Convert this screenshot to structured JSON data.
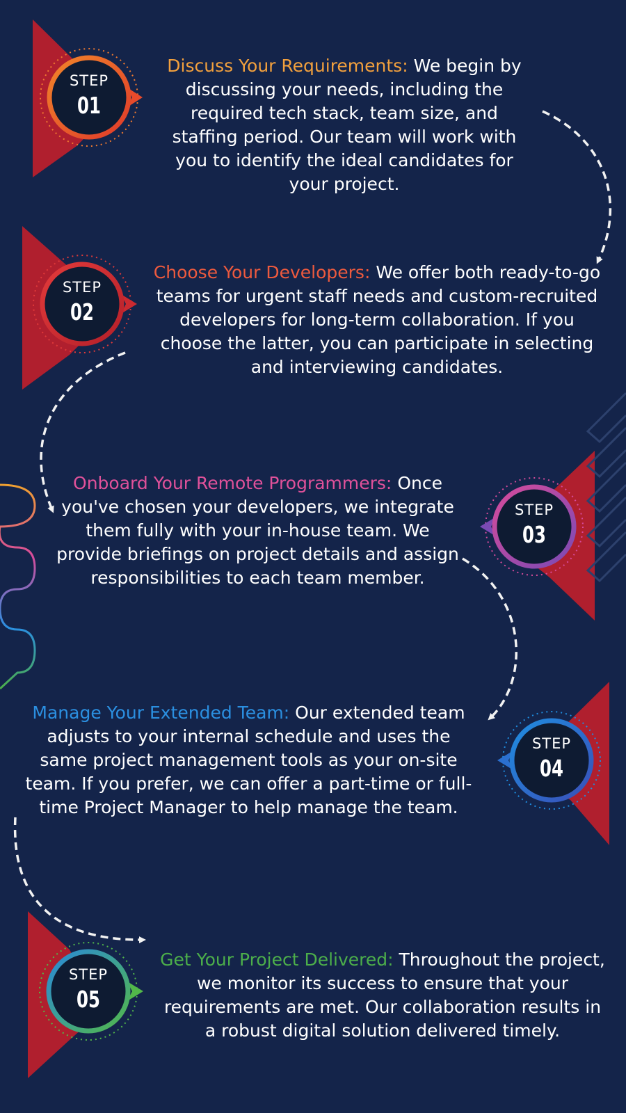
{
  "colors": {
    "background": "#14244a",
    "ribbon": "#b01f2e",
    "arrow": "#f2f2f2"
  },
  "steps": [
    {
      "step_word": "STEP",
      "number": "01",
      "title": "Discuss Your Requirements:",
      "body": "We begin by discussing your needs, including the required tech stack, team size, and staffing period. Our team will work with you to identify the ideal candidates for your project.",
      "accent": "#f2a03d",
      "ring": [
        "#f0852a",
        "#e03a2a"
      ]
    },
    {
      "step_word": "STEP",
      "number": "02",
      "title": "Choose Your Developers:",
      "body": "We offer both ready-to-go teams for urgent staff needs and custom-recruited developers for long-term collaboration. If you choose the latter, you can participate in selecting and interviewing candidates.",
      "accent": "#ee5a3e",
      "ring": [
        "#e23a3a",
        "#b5202a"
      ]
    },
    {
      "step_word": "STEP",
      "number": "03",
      "title": "Onboard Your Remote Programmers:",
      "body": "Once you've chosen your developers, we integrate them fully with your in-house team. We provide briefings on project details and assign responsibilities to each team member.",
      "accent": "#e0519a",
      "ring": [
        "#d64b9b",
        "#7a4ab4"
      ]
    },
    {
      "step_word": "STEP",
      "number": "04",
      "title": "Manage Your Extended Team:",
      "body": "Our extended team adjusts to your internal schedule and uses the same project management tools as your on-site team. If you prefer, we can offer a part-time or full-time Project Manager to help manage the team.",
      "accent": "#2b8fe0",
      "ring": [
        "#1f8de0",
        "#3a4fb8"
      ]
    },
    {
      "step_word": "STEP",
      "number": "05",
      "title": "Get Your Project Delivered:",
      "body": "Throughout the project, we monitor its success to ensure that your requirements are met. Our collaboration results in a robust digital solution delivered timely.",
      "accent": "#4cae4a",
      "ring": [
        "#2a8ad8",
        "#52b84a"
      ]
    }
  ]
}
